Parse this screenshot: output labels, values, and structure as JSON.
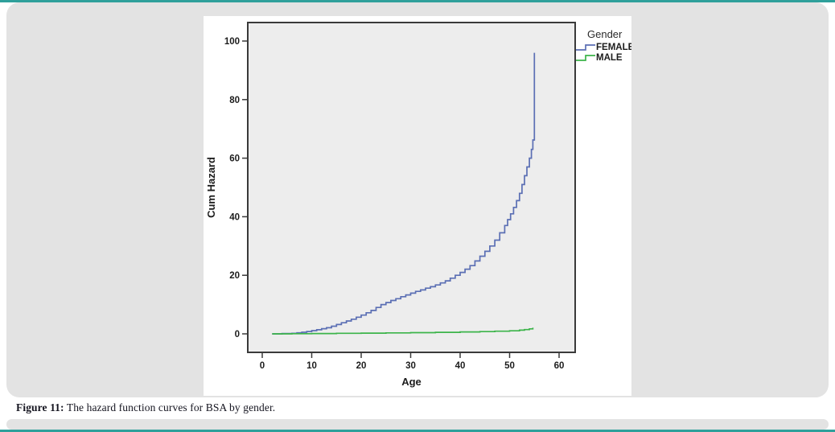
{
  "page": {
    "accent_color": "#2fa09b",
    "card_color": "#e3e3e3",
    "panel_color": "#ffffff"
  },
  "caption": {
    "label": "Figure 11:",
    "text": " The hazard function curves for BSA by gender."
  },
  "chart_data": {
    "type": "line",
    "subtype": "step",
    "title": "",
    "xlabel": "Age",
    "ylabel": "Cum Hazard",
    "x_ticks": [
      0,
      10,
      20,
      30,
      40,
      50,
      60
    ],
    "y_ticks": [
      0,
      20,
      40,
      60,
      80,
      100
    ],
    "xlim": [
      -3,
      63.5
    ],
    "ylim": [
      -6.5,
      106
    ],
    "grid": false,
    "plot_bg": "#ededed",
    "axis_color": "#3a3a3a",
    "tick_label_color": "#1c1c1c",
    "legend": {
      "title": "Gender",
      "position": "outside-top-right",
      "entries": [
        {
          "label": "FEMALE",
          "color": "#5b6fb4"
        },
        {
          "label": "MALE",
          "color": "#3cb44a"
        }
      ]
    },
    "series": [
      {
        "name": "FEMALE",
        "color": "#5b6fb4",
        "points": [
          [
            2,
            0
          ],
          [
            4,
            0.1
          ],
          [
            6,
            0.2
          ],
          [
            7,
            0.35
          ],
          [
            8,
            0.55
          ],
          [
            9,
            0.8
          ],
          [
            10,
            1.1
          ],
          [
            11,
            1.4
          ],
          [
            12,
            1.75
          ],
          [
            13,
            2.1
          ],
          [
            14,
            2.6
          ],
          [
            15,
            3.2
          ],
          [
            16,
            3.8
          ],
          [
            17,
            4.4
          ],
          [
            18,
            5.0
          ],
          [
            19,
            5.7
          ],
          [
            20,
            6.4
          ],
          [
            21,
            7.2
          ],
          [
            22,
            8.0
          ],
          [
            23,
            9.0
          ],
          [
            24,
            10.0
          ],
          [
            25,
            10.7
          ],
          [
            26,
            11.4
          ],
          [
            27,
            12.0
          ],
          [
            28,
            12.7
          ],
          [
            29,
            13.3
          ],
          [
            30,
            13.9
          ],
          [
            31,
            14.5
          ],
          [
            32,
            15.0
          ],
          [
            33,
            15.6
          ],
          [
            34,
            16.1
          ],
          [
            35,
            16.7
          ],
          [
            36,
            17.4
          ],
          [
            37,
            18.1
          ],
          [
            38,
            19.0
          ],
          [
            39,
            20.0
          ],
          [
            40,
            21.0
          ],
          [
            41,
            22.1
          ],
          [
            42,
            23.3
          ],
          [
            43,
            24.9
          ],
          [
            44,
            26.5
          ],
          [
            45,
            28.2
          ],
          [
            46,
            30.0
          ],
          [
            47,
            32.0
          ],
          [
            48,
            34.5
          ],
          [
            49,
            37.0
          ],
          [
            49.6,
            39.0
          ],
          [
            50.2,
            41.0
          ],
          [
            50.8,
            43.2
          ],
          [
            51.4,
            45.5
          ],
          [
            52,
            48.0
          ],
          [
            52.5,
            51.0
          ],
          [
            53,
            54.0
          ],
          [
            53.5,
            57.0
          ],
          [
            54,
            60.0
          ],
          [
            54.4,
            63.0
          ],
          [
            54.7,
            66.2
          ],
          [
            55,
            96.0
          ]
        ]
      },
      {
        "name": "MALE",
        "color": "#3cb44a",
        "points": [
          [
            2,
            0
          ],
          [
            6,
            0.05
          ],
          [
            10,
            0.1
          ],
          [
            15,
            0.18
          ],
          [
            20,
            0.26
          ],
          [
            25,
            0.34
          ],
          [
            30,
            0.42
          ],
          [
            35,
            0.52
          ],
          [
            40,
            0.65
          ],
          [
            44,
            0.78
          ],
          [
            47,
            0.9
          ],
          [
            50,
            1.05
          ],
          [
            52,
            1.25
          ],
          [
            53,
            1.45
          ],
          [
            54,
            1.7
          ],
          [
            54.7,
            2.1
          ]
        ]
      }
    ]
  }
}
